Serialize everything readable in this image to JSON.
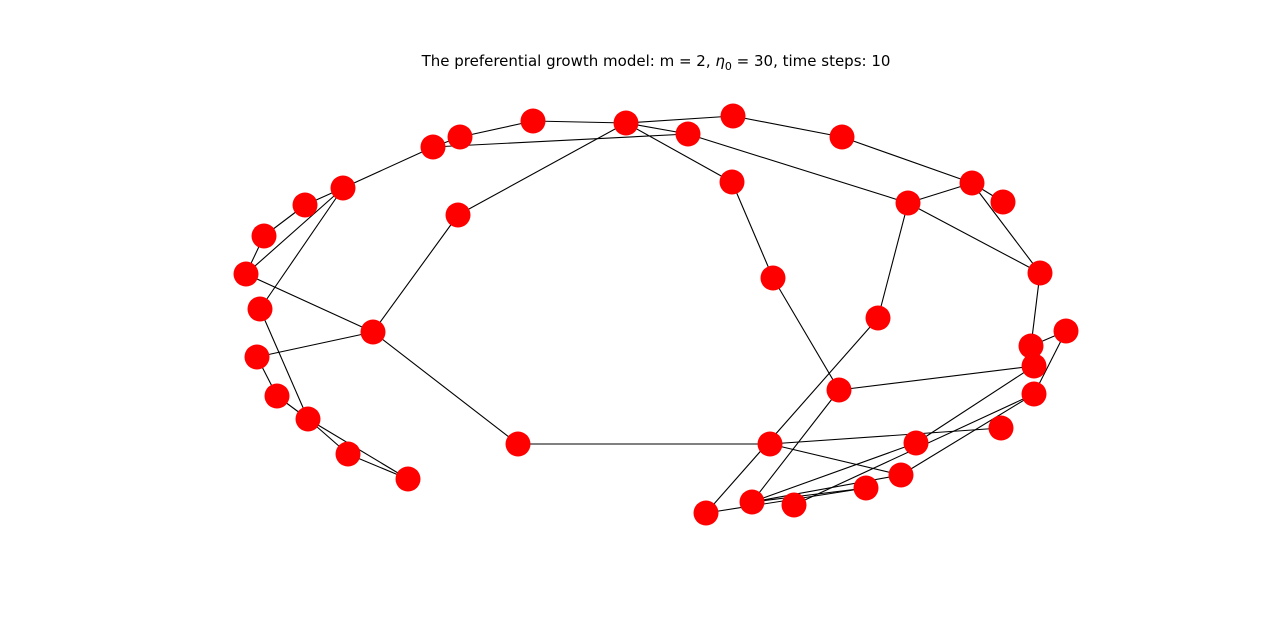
{
  "figure": {
    "title": {
      "prefix": "The preferential growth model: m = 2, ",
      "eta_symbol": "η",
      "eta_subscript": "0",
      "suffix": " = 30, time steps: 10"
    },
    "node_color": "#ff0000",
    "edge_color": "#000000",
    "background": "#ffffff"
  },
  "graph": {
    "node_count": 40,
    "edge_count": 44
  }
}
